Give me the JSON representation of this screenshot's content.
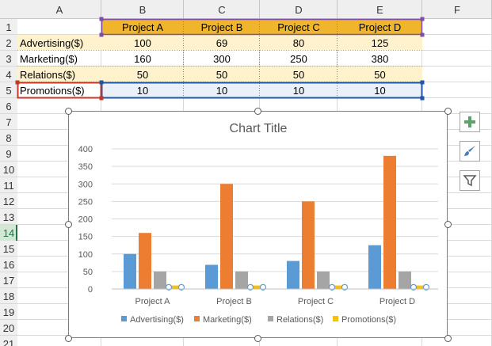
{
  "sheet": {
    "columns": [
      "A",
      "B",
      "C",
      "D",
      "E",
      "F"
    ],
    "rows": [
      "1",
      "2",
      "3",
      "4",
      "5",
      "6",
      "7",
      "8",
      "9",
      "10",
      "11",
      "12",
      "13",
      "14",
      "15",
      "16",
      "17",
      "18",
      "19",
      "20",
      "21"
    ],
    "selected_row": "14",
    "header_row": [
      "",
      "Project A",
      "Project B",
      "Project C",
      "Project D"
    ],
    "data_rows": [
      [
        "Advertising($)",
        "100",
        "69",
        "80",
        "125"
      ],
      [
        "Marketing($)",
        "160",
        "300",
        "250",
        "380"
      ],
      [
        "Relations($)",
        "50",
        "50",
        "50",
        "50"
      ],
      [
        "Promotions($)",
        "10",
        "10",
        "10",
        "10"
      ]
    ]
  },
  "colors": {
    "header_fill": "#f4b183",
    "header_gold": "#f0b52a",
    "band_fill": "#fff2cc",
    "promo_fill": "#eaf0f8",
    "advertising": "#5b9bd5",
    "marketing": "#ed7d31",
    "relations": "#a5a5a5",
    "promotions": "#ffc000"
  },
  "chart_data": {
    "type": "bar",
    "title": "Chart Title",
    "categories": [
      "Project A",
      "Project B",
      "Project C",
      "Project D"
    ],
    "series": [
      {
        "name": "Advertising($)",
        "values": [
          100,
          69,
          80,
          125
        ]
      },
      {
        "name": "Marketing($)",
        "values": [
          160,
          300,
          250,
          380
        ]
      },
      {
        "name": "Relations($)",
        "values": [
          50,
          50,
          50,
          50
        ]
      },
      {
        "name": "Promotions($)",
        "values": [
          10,
          10,
          10,
          10
        ]
      }
    ],
    "yticks": [
      "0",
      "50",
      "100",
      "150",
      "200",
      "250",
      "300",
      "350",
      "400"
    ],
    "ylim": [
      0,
      400
    ],
    "grid": true,
    "legend": "bottom",
    "selected_series": "Promotions($)"
  },
  "side_buttons": {
    "icons": [
      "plus-icon",
      "brush-icon",
      "filter-icon"
    ]
  }
}
